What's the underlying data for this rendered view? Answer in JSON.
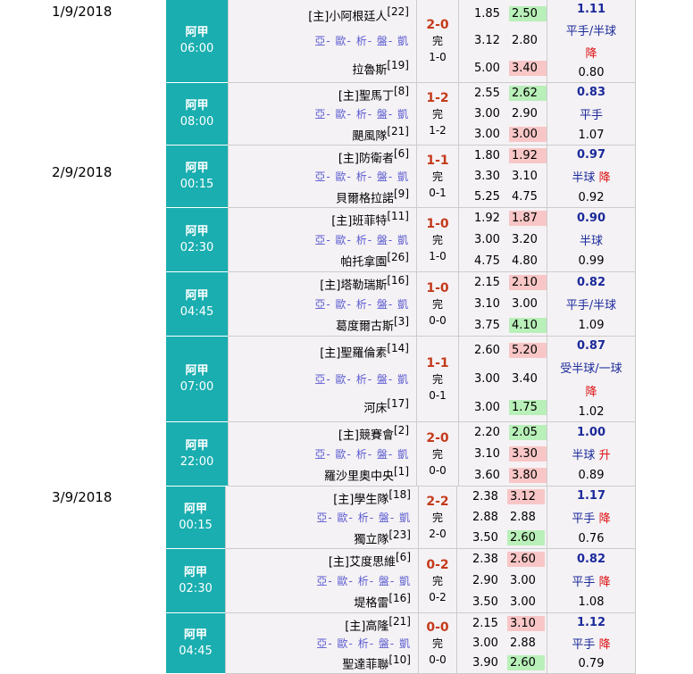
{
  "dates": [
    "1/9/2018",
    "2/9/2018",
    "3/9/2018"
  ],
  "links": "亞- 歐- 析- 盤- 凱",
  "matches": [
    {
      "league": "阿甲",
      "time": "06:00",
      "home": "[主]小阿根廷人",
      "home_rank": "[22]",
      "away": "拉魯斯",
      "away_rank": "[19]",
      "score": "2-0",
      "status": "完",
      "ht": "1-0",
      "odds": [
        [
          "1.85",
          "2.50"
        ],
        [
          "3.12",
          "2.80"
        ],
        [
          "5.00",
          "3.40"
        ]
      ],
      "hl": [
        [
          "",
          "g"
        ],
        [
          "",
          ""
        ],
        [
          "",
          "r"
        ]
      ],
      "ah_val": "1.11",
      "ah_line": "平手/半球",
      "ah_move": "降",
      "ah_move_sep": true,
      "ah_bottom": "0.80"
    },
    {
      "league": "阿甲",
      "time": "08:00",
      "home": "[主]聖馬丁",
      "home_rank": "[8]",
      "away": "颶風隊",
      "away_rank": "[21]",
      "score": "1-2",
      "status": "完",
      "ht": "1-2",
      "odds": [
        [
          "2.55",
          "2.62"
        ],
        [
          "3.00",
          "2.90"
        ],
        [
          "3.00",
          "3.00"
        ]
      ],
      "hl": [
        [
          "",
          "g"
        ],
        [
          "",
          ""
        ],
        [
          "",
          "r"
        ]
      ],
      "ah_val": "0.83",
      "ah_line": "平手",
      "ah_move": "",
      "ah_move_sep": false,
      "ah_bottom": "1.07"
    },
    {
      "league": "阿甲",
      "time": "00:15",
      "home": "[主]防衛者",
      "home_rank": "[6]",
      "away": "貝爾格拉諾",
      "away_rank": "[9]",
      "score": "1-1",
      "status": "完",
      "ht": "0-1",
      "odds": [
        [
          "1.80",
          "1.92"
        ],
        [
          "3.30",
          "3.10"
        ],
        [
          "5.25",
          "4.75"
        ]
      ],
      "hl": [
        [
          "",
          "r"
        ],
        [
          "",
          ""
        ],
        [
          "",
          ""
        ]
      ],
      "ah_val": "0.97",
      "ah_line": "半球",
      "ah_move": "降",
      "ah_move_sep": false,
      "ah_bottom": "0.92"
    },
    {
      "league": "阿甲",
      "time": "02:30",
      "home": "[主]班菲特",
      "home_rank": "[11]",
      "away": "帕托拿園",
      "away_rank": "[26]",
      "score": "1-0",
      "status": "完",
      "ht": "1-0",
      "odds": [
        [
          "1.92",
          "1.87"
        ],
        [
          "3.00",
          "3.20"
        ],
        [
          "4.75",
          "4.80"
        ]
      ],
      "hl": [
        [
          "",
          "r"
        ],
        [
          "",
          ""
        ],
        [
          "",
          ""
        ]
      ],
      "ah_val": "0.90",
      "ah_line": "半球",
      "ah_move": "",
      "ah_move_sep": false,
      "ah_bottom": "0.99"
    },
    {
      "league": "阿甲",
      "time": "04:45",
      "home": "[主]塔勒瑞斯",
      "home_rank": "[16]",
      "away": "葛度爾古斯",
      "away_rank": "[3]",
      "score": "1-0",
      "status": "完",
      "ht": "0-0",
      "odds": [
        [
          "2.15",
          "2.10"
        ],
        [
          "3.10",
          "3.00"
        ],
        [
          "3.75",
          "4.10"
        ]
      ],
      "hl": [
        [
          "",
          "r"
        ],
        [
          "",
          ""
        ],
        [
          "",
          "g"
        ]
      ],
      "ah_val": "0.82",
      "ah_line": "平手/半球",
      "ah_move": "",
      "ah_move_sep": false,
      "ah_bottom": "1.09"
    },
    {
      "league": "阿甲",
      "time": "07:00",
      "home": "[主]聖羅倫素",
      "home_rank": "[14]",
      "away": "河床",
      "away_rank": "[17]",
      "score": "1-1",
      "status": "完",
      "ht": "0-1",
      "odds": [
        [
          "2.60",
          "5.20"
        ],
        [
          "3.00",
          "3.40"
        ],
        [
          "3.00",
          "1.75"
        ]
      ],
      "hl": [
        [
          "",
          "r"
        ],
        [
          "",
          ""
        ],
        [
          "",
          "g"
        ]
      ],
      "ah_val": "0.87",
      "ah_line": "受半球/一球",
      "ah_move": "降",
      "ah_move_sep": true,
      "ah_bottom": "1.02"
    },
    {
      "league": "阿甲",
      "time": "22:00",
      "home": "[主]競賽會",
      "home_rank": "[2]",
      "away": "羅沙里奧中央",
      "away_rank": "[1]",
      "score": "2-0",
      "status": "完",
      "ht": "0-0",
      "odds": [
        [
          "2.20",
          "2.05"
        ],
        [
          "3.10",
          "3.30"
        ],
        [
          "3.60",
          "3.80"
        ]
      ],
      "hl": [
        [
          "",
          "g"
        ],
        [
          "",
          "r"
        ],
        [
          "",
          "r"
        ]
      ],
      "ah_val": "1.00",
      "ah_line": "半球",
      "ah_move": "升",
      "ah_move_sep": false,
      "ah_bottom": "0.89"
    },
    {
      "league": "阿甲",
      "time": "00:15",
      "home": "[主]學生隊",
      "home_rank": "[18]",
      "away": "獨立隊",
      "away_rank": "[23]",
      "score": "2-2",
      "status": "完",
      "ht": "2-0",
      "odds": [
        [
          "2.38",
          "3.12"
        ],
        [
          "2.88",
          "2.88"
        ],
        [
          "3.50",
          "2.60"
        ]
      ],
      "hl": [
        [
          "",
          "r"
        ],
        [
          "",
          ""
        ],
        [
          "",
          "g"
        ]
      ],
      "ah_val": "1.17",
      "ah_line": "平手",
      "ah_move": "降",
      "ah_move_sep": false,
      "ah_bottom": "0.76"
    },
    {
      "league": "阿甲",
      "time": "02:30",
      "home": "[主]艾度思維",
      "home_rank": "[6]",
      "away": "堤格雷",
      "away_rank": "[16]",
      "score": "0-2",
      "status": "完",
      "ht": "0-2",
      "odds": [
        [
          "2.38",
          "2.60"
        ],
        [
          "2.90",
          "3.00"
        ],
        [
          "3.50",
          "3.00"
        ]
      ],
      "hl": [
        [
          "",
          "r"
        ],
        [
          "",
          ""
        ],
        [
          "",
          ""
        ]
      ],
      "ah_val": "0.82",
      "ah_line": "平手",
      "ah_move": "降",
      "ah_move_sep": false,
      "ah_bottom": "1.08"
    },
    {
      "league": "阿甲",
      "time": "04:45",
      "home": "[主]高隆",
      "home_rank": "[21]",
      "away": "聖達菲聯",
      "away_rank": "[10]",
      "score": "0-0",
      "status": "完",
      "ht": "0-0",
      "odds": [
        [
          "2.15",
          "3.10"
        ],
        [
          "3.00",
          "2.88"
        ],
        [
          "3.90",
          "2.60"
        ]
      ],
      "hl": [
        [
          "",
          "r"
        ],
        [
          "",
          ""
        ],
        [
          "",
          "g"
        ]
      ],
      "ah_val": "1.12",
      "ah_line": "平手",
      "ah_move": "降",
      "ah_move_sep": false,
      "ah_bottom": "0.79"
    }
  ]
}
